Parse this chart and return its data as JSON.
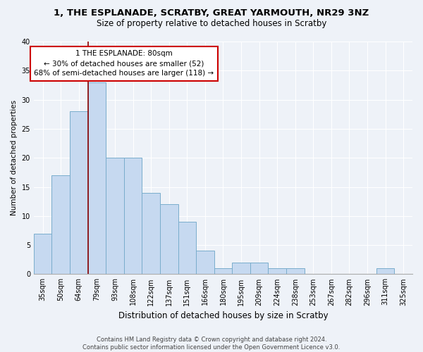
{
  "title1": "1, THE ESPLANADE, SCRATBY, GREAT YARMOUTH, NR29 3NZ",
  "title2": "Size of property relative to detached houses in Scratby",
  "xlabel": "Distribution of detached houses by size in Scratby",
  "ylabel": "Number of detached properties",
  "categories": [
    "35sqm",
    "50sqm",
    "64sqm",
    "79sqm",
    "93sqm",
    "108sqm",
    "122sqm",
    "137sqm",
    "151sqm",
    "166sqm",
    "180sqm",
    "195sqm",
    "209sqm",
    "224sqm",
    "238sqm",
    "253sqm",
    "267sqm",
    "282sqm",
    "296sqm",
    "311sqm",
    "325sqm"
  ],
  "bar_values": [
    7,
    17,
    28,
    33,
    20,
    20,
    14,
    12,
    9,
    4,
    1,
    2,
    2,
    1,
    1,
    0,
    0,
    0,
    0,
    1,
    0
  ],
  "bar_color": "#c6d9f0",
  "bar_edge_color": "#7aadcc",
  "annotation_text": "1 THE ESPLANADE: 80sqm\n← 30% of detached houses are smaller (52)\n68% of semi-detached houses are larger (118) →",
  "vline_index": 3.0,
  "vline_color": "#8b0000",
  "annotation_box_facecolor": "#ffffff",
  "annotation_box_edgecolor": "#cc0000",
  "footer": "Contains HM Land Registry data © Crown copyright and database right 2024.\nContains public sector information licensed under the Open Government Licence v3.0.",
  "ylim": [
    0,
    40
  ],
  "yticks": [
    0,
    5,
    10,
    15,
    20,
    25,
    30,
    35,
    40
  ],
  "background_color": "#eef2f8",
  "grid_color": "#ffffff",
  "title1_fontsize": 9.5,
  "title2_fontsize": 8.5,
  "xlabel_fontsize": 8.5,
  "ylabel_fontsize": 7.5,
  "tick_fontsize": 7,
  "annotation_fontsize": 7.5,
  "footer_fontsize": 6.0
}
